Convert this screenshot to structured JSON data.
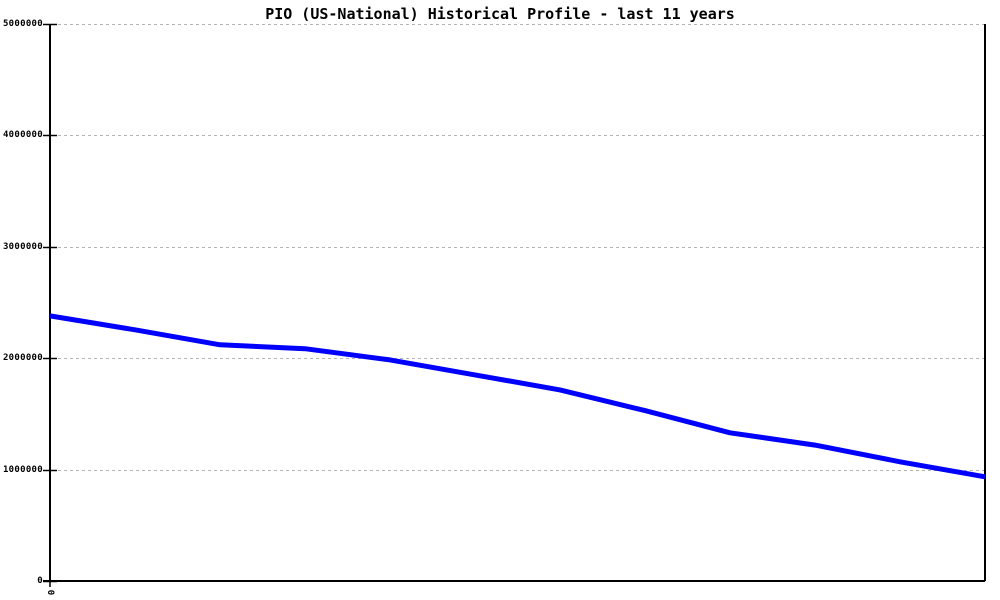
{
  "chart_data": {
    "type": "line",
    "title": "PIO (US-National) Historical Profile - last 11 years",
    "xlabel": "",
    "ylabel": "",
    "x": [
      0,
      1,
      2,
      3,
      4,
      5,
      6,
      7,
      8,
      9,
      10,
      11
    ],
    "series": [
      {
        "name": "PIO (US-National)",
        "color": "#0000ff",
        "values": [
          2380000,
          2255000,
          2120000,
          2085000,
          1985000,
          1850000,
          1715000,
          1530000,
          1330000,
          1220000,
          1070000,
          935000
        ]
      }
    ],
    "ylim": [
      0,
      5000000
    ],
    "ytick_values": [
      0,
      1000000,
      2000000,
      3000000,
      4000000,
      5000000
    ],
    "ytick_labels_desc": [
      "5000000",
      "4000000",
      "3000000",
      "2000000",
      "1000000",
      "0"
    ],
    "xtick_labels": [
      "0"
    ],
    "grid": "horizontal-dashed",
    "legend": "none",
    "colors": {
      "line": "#0000ff",
      "grid": "#b3b3b3",
      "axis": "#000000",
      "background": "#ffffff",
      "text": "#000000"
    }
  }
}
